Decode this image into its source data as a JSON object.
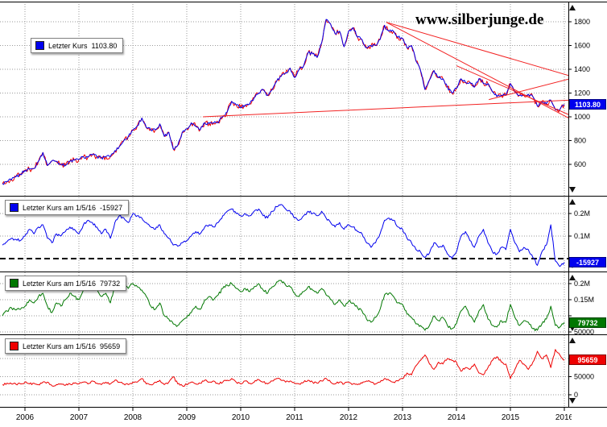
{
  "watermark": "www.silberjunge.de",
  "x_axis": {
    "labels": [
      "2006",
      "2007",
      "2008",
      "2009",
      "2010",
      "2011",
      "2012",
      "2013",
      "2014",
      "2015",
      "2016"
    ]
  },
  "chart_data": [
    {
      "type": "line",
      "legend": "Letzter Kurs  1103.80",
      "tag": "1103.80",
      "color": "#0000ee",
      "aux_color": "#ee0000",
      "x_start": 2005.5833,
      "x_step": 0.0833333,
      "y_ticks": [
        {
          "v": 1800,
          "label": "1800"
        },
        {
          "v": 1600,
          "label": "1600"
        },
        {
          "v": 1400,
          "label": "1400"
        },
        {
          "v": 1200,
          "label": "1200"
        },
        {
          "v": 1000,
          "label": "1000"
        },
        {
          "v": 800,
          "label": "800"
        },
        {
          "v": 600,
          "label": "600"
        }
      ],
      "trendlines": [
        {
          "x1": 2012.7,
          "y1": 1795,
          "x2": 2016.1,
          "y2": 1345
        },
        {
          "x1": 2012.7,
          "y1": 1795,
          "x2": 2016.1,
          "y2": 985
        },
        {
          "x1": 2009.3,
          "y1": 1000,
          "x2": 2016.1,
          "y2": 1140
        },
        {
          "x1": 2014.6,
          "y1": 1145,
          "x2": 2016.1,
          "y2": 1320
        },
        {
          "x1": 2014.0,
          "y1": 1430,
          "x2": 2016.1,
          "y2": 1015
        }
      ],
      "values": [
        437,
        455,
        470,
        495,
        515,
        550,
        560,
        565,
        625,
        700,
        590,
        630,
        625,
        600,
        590,
        625,
        635,
        640,
        665,
        660,
        680,
        665,
        655,
        665,
        665,
        715,
        750,
        800,
        835,
        890,
        925,
        990,
        910,
        890,
        890,
        940,
        835,
        870,
        730,
        760,
        870,
        900,
        950,
        920,
        890,
        950,
        945,
        950,
        950,
        1000,
        1040,
        1130,
        1100,
        1080,
        1100,
        1110,
        1160,
        1200,
        1230,
        1180,
        1230,
        1300,
        1340,
        1370,
        1410,
        1330,
        1400,
        1430,
        1540,
        1530,
        1500,
        1620,
        1820,
        1780,
        1700,
        1720,
        1590,
        1720,
        1750,
        1670,
        1650,
        1580,
        1600,
        1600,
        1650,
        1770,
        1720,
        1720,
        1670,
        1660,
        1580,
        1600,
        1470,
        1390,
        1230,
        1310,
        1390,
        1330,
        1320,
        1250,
        1200,
        1240,
        1320,
        1290,
        1290,
        1250,
        1320,
        1280,
        1280,
        1210,
        1170,
        1180,
        1180,
        1280,
        1210,
        1180,
        1180,
        1190,
        1170,
        1090,
        1130,
        1110,
        1140,
        1060,
        1060,
        1103.8
      ]
    },
    {
      "type": "line",
      "legend": "Letzter Kurs am 1/5/16  -15927",
      "tag": "-15927",
      "color": "#0000ee",
      "zero_line_dashed": true,
      "x_start": 2005.5833,
      "x_step": 0.0833333,
      "y_ticks": [
        {
          "v": 200000,
          "label": "0.2M"
        },
        {
          "v": 100000,
          "label": "0.1M"
        }
      ],
      "values": [
        60000,
        75000,
        90000,
        85000,
        80000,
        100000,
        130000,
        110000,
        140000,
        150000,
        90000,
        70000,
        110000,
        100000,
        120000,
        140000,
        130000,
        110000,
        150000,
        170000,
        160000,
        140000,
        110000,
        130000,
        90000,
        160000,
        190000,
        180000,
        160000,
        200000,
        190000,
        180000,
        160000,
        140000,
        130000,
        150000,
        110000,
        90000,
        60000,
        55000,
        70000,
        80000,
        100000,
        120000,
        110000,
        140000,
        150000,
        140000,
        160000,
        190000,
        210000,
        220000,
        200000,
        190000,
        200000,
        190000,
        210000,
        220000,
        190000,
        180000,
        210000,
        230000,
        240000,
        220000,
        210000,
        180000,
        170000,
        190000,
        210000,
        200000,
        190000,
        210000,
        180000,
        160000,
        140000,
        160000,
        130000,
        150000,
        140000,
        120000,
        110000,
        70000,
        50000,
        70000,
        110000,
        170000,
        180000,
        170000,
        140000,
        130000,
        90000,
        70000,
        40000,
        30000,
        5000,
        25000,
        70000,
        50000,
        60000,
        20000,
        0,
        30000,
        100000,
        120000,
        80000,
        50000,
        100000,
        130000,
        70000,
        30000,
        20000,
        50000,
        40000,
        130000,
        70000,
        30000,
        50000,
        40000,
        5000,
        -30000,
        30000,
        60000,
        150000,
        -10000,
        -35000,
        -15927
      ]
    },
    {
      "type": "line",
      "legend": "Letzter Kurs am 1/5/16  79732",
      "tag": "79732",
      "color": "#007700",
      "x_start": 2005.5833,
      "x_step": 0.0833333,
      "y_ticks": [
        {
          "v": 200000,
          "label": "0.2M"
        },
        {
          "v": 150000,
          "label": "0.15M"
        },
        {
          "v": 100000,
          "label": ""
        },
        {
          "v": 50000,
          "label": "50000"
        }
      ],
      "values": [
        100000,
        115000,
        125000,
        118000,
        120000,
        130000,
        150000,
        140000,
        160000,
        170000,
        130000,
        110000,
        140000,
        130000,
        150000,
        170000,
        160000,
        150000,
        180000,
        200000,
        195000,
        185000,
        160000,
        170000,
        140000,
        190000,
        205000,
        200000,
        185000,
        200000,
        190000,
        180000,
        160000,
        130000,
        120000,
        140000,
        100000,
        90000,
        75000,
        70000,
        85000,
        95000,
        110000,
        130000,
        120000,
        150000,
        160000,
        150000,
        165000,
        185000,
        195000,
        200000,
        185000,
        175000,
        185000,
        175000,
        190000,
        200000,
        180000,
        170000,
        190000,
        205000,
        210000,
        195000,
        190000,
        170000,
        160000,
        175000,
        190000,
        180000,
        170000,
        185000,
        165000,
        150000,
        135000,
        150000,
        130000,
        145000,
        140000,
        125000,
        115000,
        90000,
        80000,
        95000,
        120000,
        165000,
        170000,
        160000,
        140000,
        135000,
        105000,
        95000,
        75000,
        70000,
        55000,
        70000,
        100000,
        85000,
        95000,
        70000,
        60000,
        75000,
        115000,
        130000,
        100000,
        80000,
        115000,
        135000,
        90000,
        70000,
        65000,
        85000,
        80000,
        135000,
        95000,
        70000,
        85000,
        80000,
        60000,
        55000,
        75000,
        90000,
        130000,
        70000,
        65000,
        79732
      ]
    },
    {
      "type": "line",
      "legend": "Letzter Kurs am 1/5/16  95659",
      "tag": "95659",
      "color": "#ee0000",
      "x_start": 2005.5833,
      "x_step": 0.0833333,
      "y_ticks": [
        {
          "v": 100000,
          "label": ""
        },
        {
          "v": 50000,
          "label": "50000"
        },
        {
          "v": 0,
          "label": "0"
        }
      ],
      "values": [
        28000,
        32000,
        30000,
        29000,
        30000,
        35000,
        30000,
        32000,
        28000,
        35000,
        35000,
        25000,
        28000,
        30000,
        26000,
        30000,
        32000,
        30000,
        35000,
        30000,
        38000,
        32000,
        28000,
        35000,
        30000,
        40000,
        35000,
        30000,
        28000,
        35000,
        35000,
        45000,
        30000,
        28000,
        35000,
        40000,
        28000,
        35000,
        50000,
        30000,
        25000,
        28000,
        35000,
        30000,
        32000,
        40000,
        35000,
        38000,
        30000,
        35000,
        40000,
        45000,
        35000,
        30000,
        38000,
        32000,
        35000,
        42000,
        35000,
        30000,
        38000,
        45000,
        40000,
        35000,
        38000,
        32000,
        30000,
        35000,
        40000,
        35000,
        32000,
        38000,
        45000,
        35000,
        30000,
        35000,
        30000,
        35000,
        30000,
        28000,
        32000,
        38000,
        35000,
        30000,
        35000,
        45000,
        40000,
        35000,
        38000,
        45000,
        60000,
        55000,
        80000,
        95000,
        110000,
        85000,
        70000,
        90000,
        85000,
        100000,
        95000,
        90000,
        65000,
        75000,
        70000,
        85000,
        60000,
        55000,
        75000,
        95000,
        105000,
        90000,
        85000,
        45000,
        70000,
        95000,
        85000,
        70000,
        90000,
        120000,
        100000,
        110000,
        75000,
        125000,
        110000,
        95659
      ]
    }
  ]
}
